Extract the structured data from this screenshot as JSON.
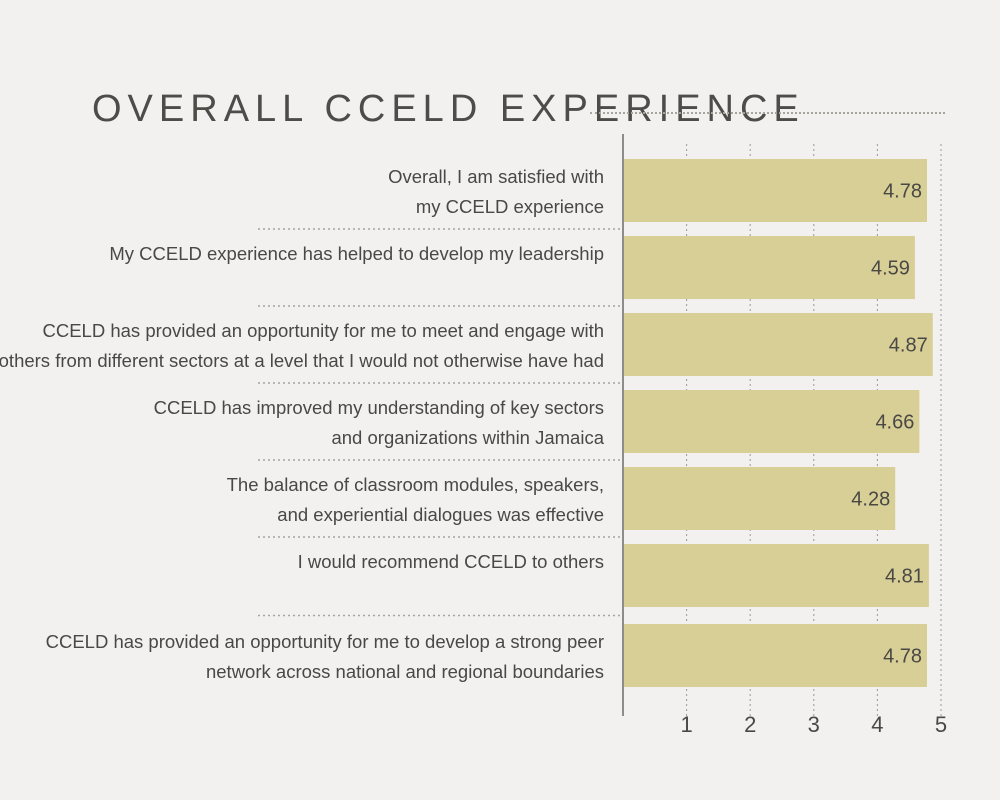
{
  "chart_data": {
    "type": "bar",
    "orientation": "horizontal",
    "title": "OVERALL CCELD EXPERIENCE",
    "categories": [
      [
        "Overall, I am satisfied with",
        "my CCELD experience"
      ],
      [
        "My CCELD experience has helped to develop my leadership"
      ],
      [
        "CCELD has provided an opportunity for me to meet and engage with",
        "others from different sectors at a level that I would not otherwise have had"
      ],
      [
        "CCELD has improved my understanding of key sectors",
        "and organizations within Jamaica"
      ],
      [
        "The balance of classroom modules, speakers,",
        "and experiential dialogues was effective"
      ],
      [
        "I would recommend CCELD to others"
      ],
      [
        "CCELD has provided an opportunity for me to develop a strong peer",
        "network across national and regional boundaries"
      ]
    ],
    "values": [
      4.78,
      4.59,
      4.87,
      4.66,
      4.28,
      4.81,
      4.78
    ],
    "value_labels": [
      "4.78",
      "4.59",
      "4.87",
      "4.66",
      "4.28",
      "4.81",
      "4.78"
    ],
    "xticks": [
      1,
      2,
      3,
      4,
      5
    ],
    "xlim": [
      0,
      5
    ],
    "grid": "vertical-dotted",
    "bar_color": "#d8cf96",
    "text_color": "#4a4845",
    "background": "#f2f1ef"
  }
}
